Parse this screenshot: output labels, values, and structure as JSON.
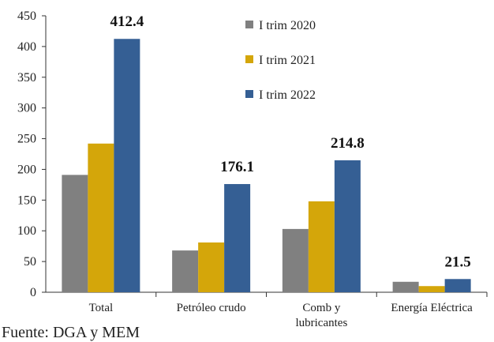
{
  "chart_data": {
    "type": "bar",
    "title": "",
    "xlabel": "",
    "ylabel": "",
    "categories": [
      "Total",
      "Petróleo crudo",
      "Comb y lubricantes",
      "Energía Eléctrica"
    ],
    "series": [
      {
        "name": "I trim 2020",
        "color": "#808080",
        "values": [
          191,
          68,
          103,
          17
        ]
      },
      {
        "name": "I trim 2021",
        "color": "#d4a60a",
        "values": [
          242,
          81,
          148,
          10
        ]
      },
      {
        "name": "I trim 2022",
        "color": "#355f94",
        "values": [
          412.4,
          176.1,
          214.8,
          21.5
        ]
      }
    ],
    "data_labels": {
      "series": "I trim 2022",
      "values": [
        "412.4",
        "176.1",
        "214.8",
        "21.5"
      ]
    },
    "yticks": [
      0,
      50,
      100,
      150,
      200,
      250,
      300,
      350,
      400,
      450
    ],
    "ylim": [
      0,
      450
    ],
    "grid": false,
    "legend": "top-right"
  },
  "source_note": "Fuente: DGA y MEM"
}
